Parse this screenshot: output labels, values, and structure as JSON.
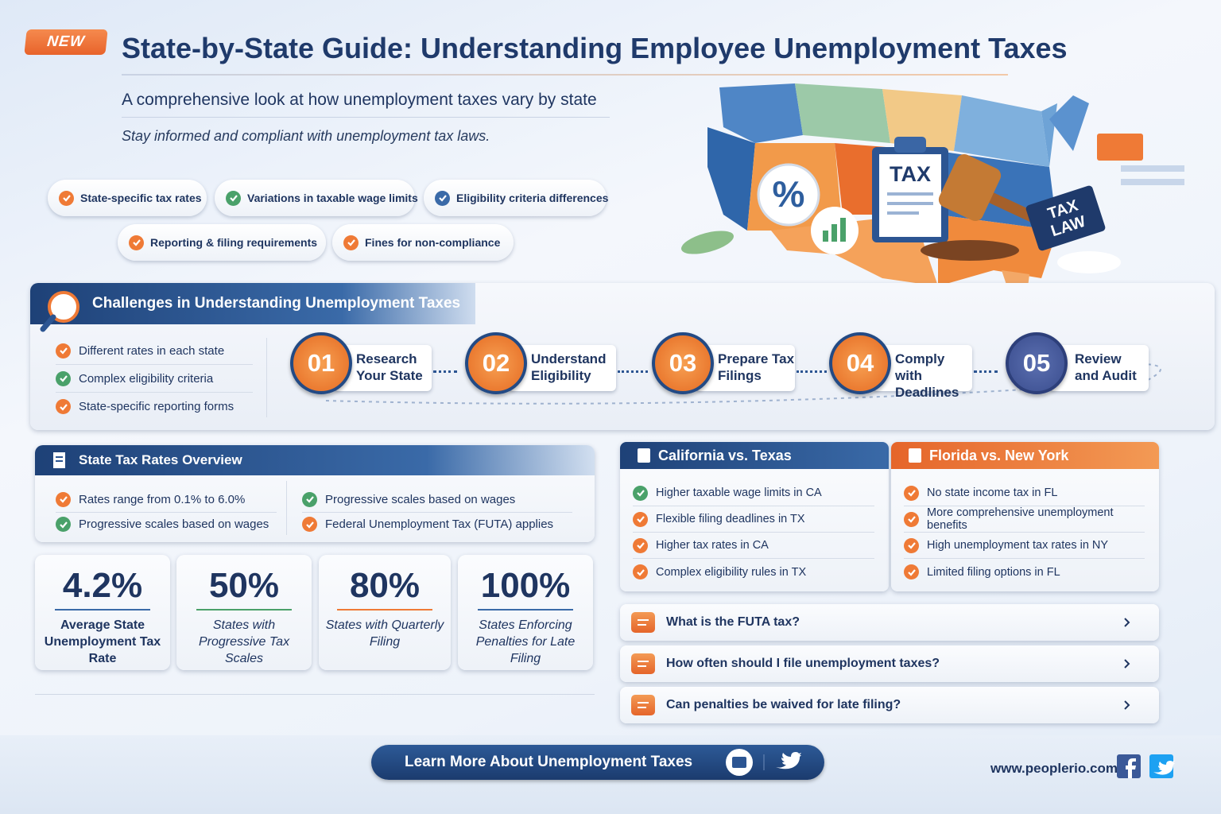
{
  "badge": "NEW",
  "header": {
    "title": "State-by-State Guide: Understanding Employee Unemployment Taxes",
    "subtitle": "A comprehensive look at how unemployment taxes vary by state",
    "tagline": "Stay informed and compliant with unemployment tax laws."
  },
  "tags": [
    "State-specific tax rates",
    "Variations in taxable wage limits",
    "Eligibility criteria differences",
    "Reporting & filing requirements",
    "Fines for non-compliance"
  ],
  "illustration": {
    "percent": "%",
    "clipboard": "TAX",
    "sign": "TAX LAW"
  },
  "challenges": {
    "title": "Challenges in Understanding Unemployment Taxes",
    "items": [
      "Different rates in each state",
      "Complex eligibility criteria",
      "State-specific reporting forms"
    ],
    "steps": [
      {
        "number": "01",
        "label": "Research Your State"
      },
      {
        "number": "02",
        "label": "Understand Eligibility"
      },
      {
        "number": "03",
        "label": "Prepare Tax Filings"
      },
      {
        "number": "04",
        "label": "Comply with Deadlines"
      },
      {
        "number": "05",
        "label": "Review and Audit"
      }
    ]
  },
  "overview": {
    "title": "State Tax Rates Overview",
    "items": [
      "Rates range from 0.1% to 6.0%",
      "Progressive scales based on wages",
      "Progressive scales based on wages",
      "Federal Unemployment Tax (FUTA) applies"
    ]
  },
  "stats": [
    {
      "value": "4.2%",
      "label": "Average State Unemployment Tax Rate"
    },
    {
      "value": "50%",
      "label": "States with Progressive Tax Scales"
    },
    {
      "value": "80%",
      "label": "States with Quarterly Filing"
    },
    {
      "value": "100%",
      "label": "States Enforcing Penalties for Late Filing"
    }
  ],
  "comparisons": [
    {
      "title": "California vs. Texas",
      "items": [
        "Higher taxable wage limits in CA",
        "Flexible filing deadlines in TX",
        "Higher tax rates in CA",
        "Complex eligibility rules in TX"
      ]
    },
    {
      "title": "Florida vs. New York",
      "items": [
        "No state income tax in FL",
        "More comprehensive unemployment benefits",
        "High unemployment tax rates in NY",
        "Limited filing options in FL"
      ]
    }
  ],
  "faq": [
    "What is the FUTA tax?",
    "How often should I file unemployment taxes?",
    "Can penalties be waived for late filing?"
  ],
  "footer": {
    "button": "Learn More About Unemployment Taxes",
    "url": "www.peoplerio.com"
  }
}
